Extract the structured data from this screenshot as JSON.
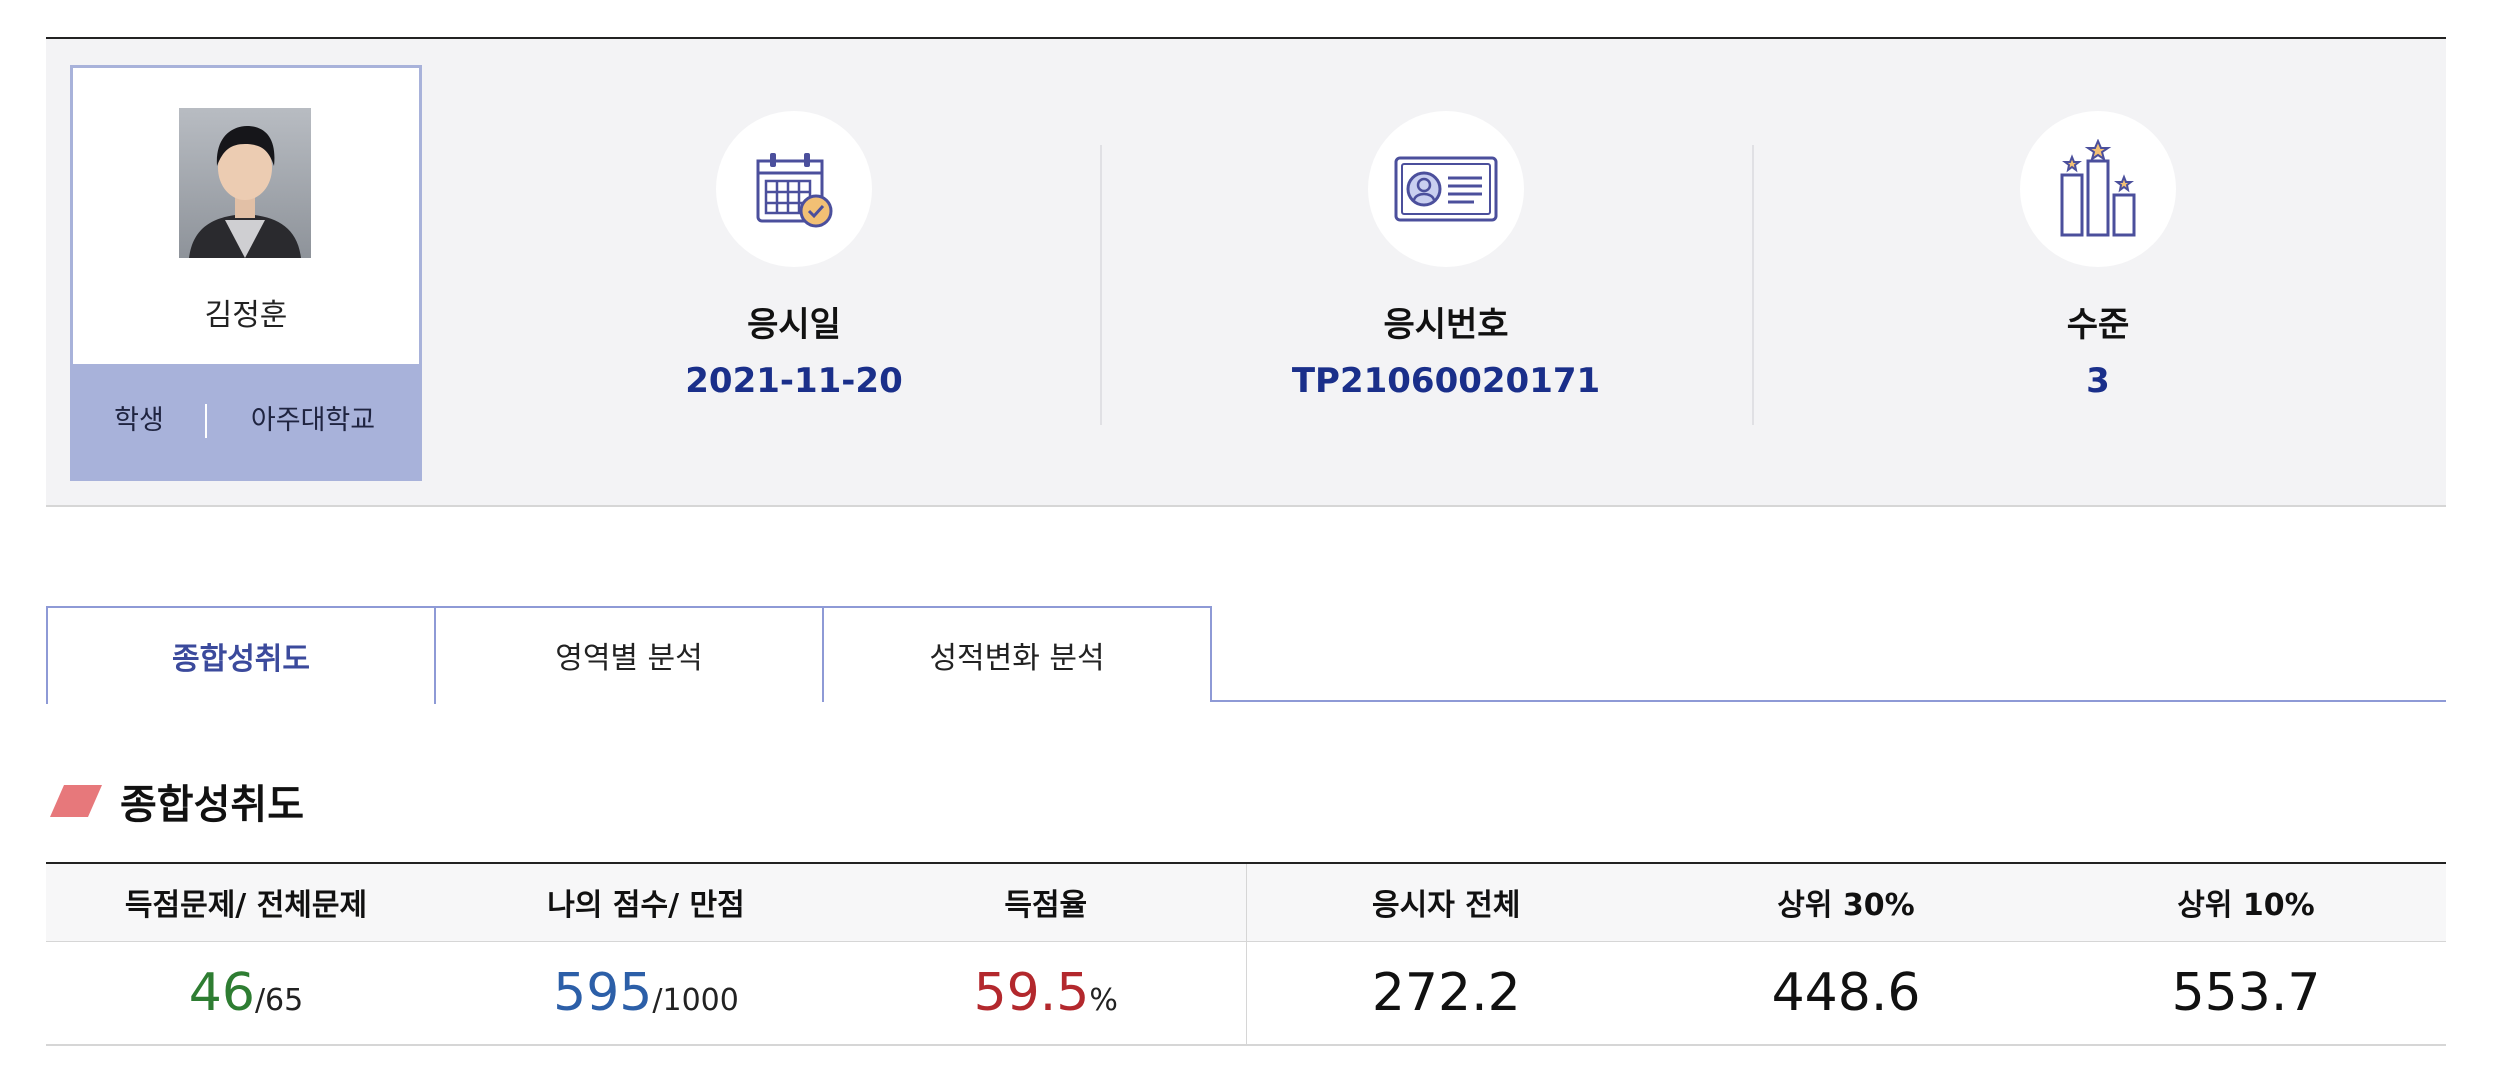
{
  "profile": {
    "name": "김정훈",
    "role": "학생",
    "school": "아주대학교"
  },
  "stats": [
    {
      "label": "응시일",
      "value": "2021-11-20",
      "icon": "calendar-check-icon"
    },
    {
      "label": "응시번호",
      "value": "TP21060020171",
      "icon": "id-card-icon"
    },
    {
      "label": "수준",
      "value": "3",
      "icon": "level-podium-icon"
    }
  ],
  "tabs": [
    {
      "label": "종합성취도",
      "active": true
    },
    {
      "label": "영역별 분석",
      "active": false
    },
    {
      "label": "성적변화 분석",
      "active": false
    }
  ],
  "section": {
    "title": "종합성취도"
  },
  "score_table": {
    "headers": [
      "득점문제/ 전체문제",
      "나의 점수/ 만점",
      "득점율",
      "응시자 전체",
      "상위 30%",
      "상위 10%"
    ],
    "correct": "46",
    "total_questions": "/65",
    "score": "595",
    "max_score": "/1000",
    "rate": "59.5",
    "rate_unit": "%",
    "all_avg": "272.2",
    "top30": "448.6",
    "top10": "553.7"
  },
  "colors": {
    "accent": "#a8b2da",
    "value_blue": "#1a2f8a",
    "correct_green": "#2e7d32",
    "score_blue": "#2c5fa8",
    "rate_red": "#b3282d"
  }
}
